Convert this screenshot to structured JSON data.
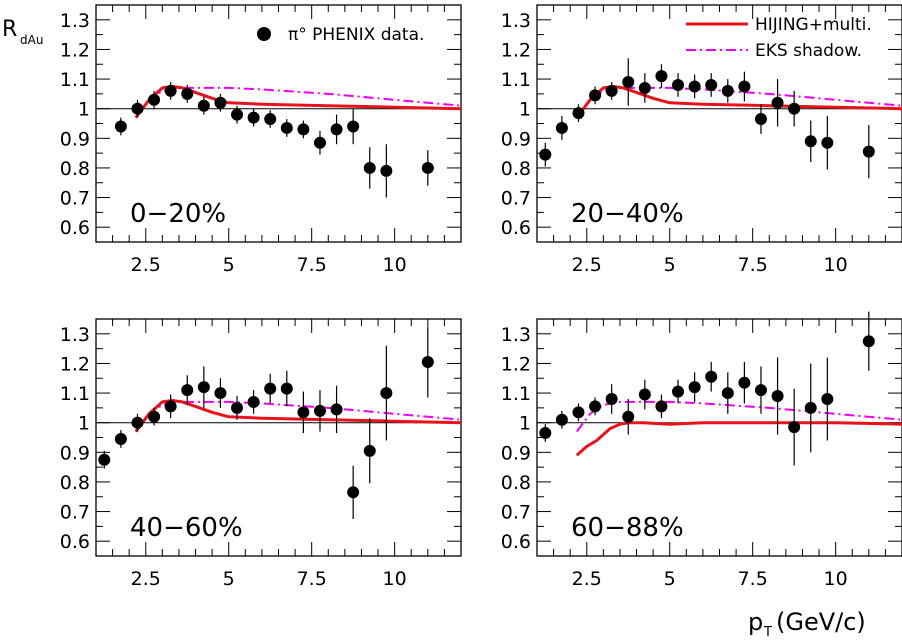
{
  "chart_data": {
    "type": "scatter",
    "y_axis": {
      "label_main": "R",
      "label_sub": "dAu",
      "range": [
        0.55,
        1.35
      ],
      "ticks": [
        0.6,
        0.7,
        0.8,
        0.9,
        1,
        1.1,
        1.2,
        1.3
      ],
      "tick_labels": [
        "0.6",
        "0.7",
        "0.8",
        "0.9",
        "1",
        "1.1",
        "1.2",
        "1.3"
      ]
    },
    "x_axis": {
      "label_main": "p",
      "label_sub": "T",
      "label_unit": " (GeV/c)",
      "range": [
        1.0,
        12.0
      ],
      "ticks": [
        2.5,
        5,
        7.5,
        10
      ],
      "tick_labels": [
        "2.5",
        "5",
        "7.5",
        "10"
      ]
    },
    "legend": [
      {
        "label": "π° PHENIX data.",
        "kind": "marker",
        "color": "#000000"
      },
      {
        "label": "HIJING+multi.",
        "kind": "line",
        "color": "#e8121a"
      },
      {
        "label": "EKS shadow.",
        "kind": "dashdot",
        "color": "#ee00ee"
      }
    ],
    "panels": [
      {
        "label": "0−20%",
        "data": {
          "x": [
            1.75,
            2.25,
            2.75,
            3.25,
            3.75,
            4.25,
            4.75,
            5.25,
            5.75,
            6.25,
            6.75,
            7.25,
            7.75,
            8.25,
            8.75,
            9.25,
            9.75,
            11.0
          ],
          "y": [
            0.94,
            1.0,
            1.03,
            1.06,
            1.05,
            1.01,
            1.02,
            0.98,
            0.97,
            0.965,
            0.935,
            0.93,
            0.885,
            0.93,
            0.94,
            0.8,
            0.79,
            0.8
          ],
          "err": [
            0.03,
            0.03,
            0.03,
            0.03,
            0.03,
            0.03,
            0.03,
            0.03,
            0.03,
            0.03,
            0.03,
            0.03,
            0.04,
            0.05,
            0.06,
            0.07,
            0.09,
            0.06
          ]
        },
        "hijing": {
          "x": [
            2.2,
            2.6,
            3.0,
            3.3,
            3.6,
            4.0,
            4.5,
            5.0,
            6.0,
            8.0,
            10.0,
            12.0
          ],
          "y": [
            0.97,
            1.03,
            1.07,
            1.075,
            1.07,
            1.055,
            1.035,
            1.02,
            1.015,
            1.01,
            1.005,
            1.0
          ]
        },
        "eks": {
          "x": [
            2.2,
            2.6,
            3.0,
            3.5,
            4.0,
            5.0,
            6.0,
            8.0,
            10.0,
            12.0
          ],
          "y": [
            0.97,
            1.03,
            1.06,
            1.07,
            1.07,
            1.07,
            1.065,
            1.05,
            1.03,
            1.01
          ]
        }
      },
      {
        "label": "20−40%",
        "data": {
          "x": [
            1.25,
            1.75,
            2.25,
            2.75,
            3.25,
            3.75,
            4.25,
            4.75,
            5.25,
            5.75,
            6.25,
            6.75,
            7.25,
            7.75,
            8.25,
            8.75,
            9.25,
            9.75,
            11.0
          ],
          "y": [
            0.845,
            0.935,
            0.985,
            1.045,
            1.06,
            1.09,
            1.07,
            1.11,
            1.08,
            1.075,
            1.08,
            1.06,
            1.075,
            0.965,
            1.02,
            1.0,
            0.89,
            0.885,
            0.855
          ],
          "err": [
            0.04,
            0.04,
            0.03,
            0.03,
            0.03,
            0.08,
            0.05,
            0.04,
            0.04,
            0.04,
            0.04,
            0.04,
            0.05,
            0.05,
            0.08,
            0.06,
            0.07,
            0.09,
            0.09
          ]
        },
        "hijing": {
          "x": [
            2.2,
            2.6,
            3.0,
            3.3,
            3.6,
            4.0,
            4.5,
            5.0,
            6.0,
            8.0,
            10.0,
            12.0
          ],
          "y": [
            0.97,
            1.03,
            1.07,
            1.075,
            1.07,
            1.055,
            1.035,
            1.02,
            1.015,
            1.01,
            1.005,
            1.0
          ]
        },
        "eks": {
          "x": [
            2.2,
            2.6,
            3.0,
            3.5,
            4.0,
            5.0,
            6.0,
            8.0,
            10.0,
            12.0
          ],
          "y": [
            0.97,
            1.03,
            1.06,
            1.07,
            1.07,
            1.07,
            1.065,
            1.05,
            1.03,
            1.01
          ]
        }
      },
      {
        "label": "40−60%",
        "data": {
          "x": [
            1.25,
            1.75,
            2.25,
            2.75,
            3.25,
            3.75,
            4.25,
            4.75,
            5.25,
            5.75,
            6.25,
            6.75,
            7.25,
            7.75,
            8.25,
            8.75,
            9.25,
            9.75,
            11.0
          ],
          "y": [
            0.875,
            0.945,
            1.0,
            1.02,
            1.055,
            1.11,
            1.12,
            1.1,
            1.05,
            1.07,
            1.115,
            1.115,
            1.035,
            1.04,
            1.045,
            0.765,
            0.905,
            1.1,
            1.205
          ],
          "err": [
            0.03,
            0.03,
            0.03,
            0.03,
            0.04,
            0.05,
            0.07,
            0.05,
            0.04,
            0.04,
            0.05,
            0.06,
            0.07,
            0.07,
            0.08,
            0.09,
            0.11,
            0.16,
            0.12
          ]
        },
        "hijing": {
          "x": [
            2.2,
            2.6,
            3.0,
            3.3,
            3.6,
            4.0,
            4.5,
            5.0,
            6.0,
            8.0,
            10.0,
            12.0
          ],
          "y": [
            0.97,
            1.03,
            1.07,
            1.075,
            1.07,
            1.055,
            1.035,
            1.02,
            1.015,
            1.01,
            1.005,
            1.0
          ]
        },
        "eks": {
          "x": [
            2.2,
            2.6,
            3.0,
            3.5,
            4.0,
            5.0,
            6.0,
            8.0,
            10.0,
            12.0
          ],
          "y": [
            0.97,
            1.03,
            1.06,
            1.07,
            1.07,
            1.07,
            1.065,
            1.05,
            1.03,
            1.01
          ]
        }
      },
      {
        "label": "60−88%",
        "data": {
          "x": [
            1.25,
            1.75,
            2.25,
            2.75,
            3.25,
            3.75,
            4.25,
            4.75,
            5.25,
            5.75,
            6.25,
            6.75,
            7.25,
            7.75,
            8.25,
            8.75,
            9.25,
            9.75,
            11.0
          ],
          "y": [
            0.965,
            1.01,
            1.035,
            1.055,
            1.08,
            1.02,
            1.095,
            1.055,
            1.105,
            1.12,
            1.155,
            1.1,
            1.135,
            1.11,
            1.09,
            0.985,
            1.05,
            1.08,
            1.275
          ],
          "err": [
            0.03,
            0.03,
            0.03,
            0.03,
            0.05,
            0.06,
            0.05,
            0.04,
            0.04,
            0.05,
            0.05,
            0.07,
            0.07,
            0.08,
            0.13,
            0.13,
            0.15,
            0.14,
            0.1
          ]
        },
        "hijing": {
          "x": [
            2.2,
            2.5,
            2.8,
            3.2,
            3.5,
            3.8,
            4.2,
            5.0,
            6.0,
            8.0,
            10.0,
            12.0
          ],
          "y": [
            0.89,
            0.92,
            0.94,
            0.98,
            0.995,
            1.0,
            1.0,
            0.995,
            1.0,
            1.0,
            1.0,
            0.995
          ]
        },
        "eks": {
          "x": [
            2.2,
            2.6,
            3.0,
            3.5,
            4.0,
            5.0,
            6.0,
            8.0,
            10.0,
            12.0
          ],
          "y": [
            0.97,
            1.03,
            1.06,
            1.07,
            1.07,
            1.07,
            1.065,
            1.05,
            1.03,
            1.01
          ]
        }
      }
    ]
  }
}
